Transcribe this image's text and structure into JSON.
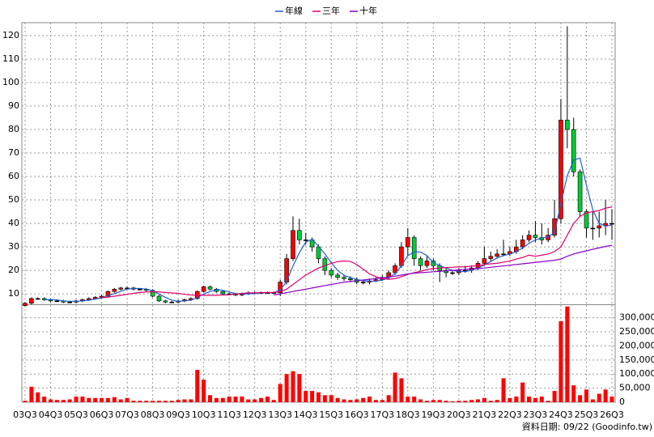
{
  "chart_data": [
    {
      "type": "candlestick",
      "up_color": "#ff0000",
      "down_color": "#00cc33",
      "open": [
        5,
        6,
        8,
        8,
        7.5,
        7,
        7,
        6.5,
        6.5,
        7,
        7.5,
        8,
        8.5,
        9,
        11,
        12,
        12.5,
        12.5,
        12,
        12,
        11.5,
        9,
        7,
        6.5,
        6.5,
        7,
        7.5,
        8,
        11,
        13,
        12,
        11,
        10,
        10,
        9.5,
        10,
        10.5,
        10.5,
        10.5,
        10.5,
        10.5,
        15,
        25,
        37,
        33,
        33,
        30,
        25,
        20,
        18,
        17,
        16.5,
        16,
        15,
        15,
        15.5,
        16,
        17,
        19,
        22,
        30,
        34,
        25,
        22,
        24,
        22,
        20,
        19,
        19,
        20,
        20,
        21,
        23,
        25,
        26,
        27,
        27,
        28,
        30,
        33,
        35,
        34,
        33,
        35,
        42,
        84,
        80,
        62,
        45,
        38,
        38,
        39,
        40
      ],
      "high": [
        6.5,
        8.5,
        8.5,
        8.5,
        8,
        7.5,
        7.5,
        7,
        7.5,
        8,
        8.5,
        9,
        9.5,
        11.5,
        12.5,
        13,
        13,
        13,
        12.5,
        12.5,
        12,
        9.5,
        7.5,
        7,
        7.5,
        8,
        8.5,
        11.5,
        13.5,
        13.5,
        12.5,
        11.5,
        10.5,
        10.5,
        10.5,
        11,
        11,
        11,
        11,
        11,
        16,
        27,
        43,
        42,
        36,
        34,
        31,
        26,
        21,
        19,
        18,
        17.5,
        17,
        16,
        16.5,
        17,
        18,
        20,
        23,
        32,
        38,
        35,
        26,
        26,
        25,
        23,
        21,
        20,
        21,
        22,
        22,
        24,
        30,
        28,
        29,
        33,
        30,
        33,
        35,
        37,
        41,
        40,
        38,
        50,
        93,
        124,
        85,
        63,
        46,
        45,
        45,
        50,
        46
      ],
      "low": [
        4.5,
        5.5,
        7.5,
        7,
        6.5,
        6.5,
        6,
        6,
        6,
        6.5,
        7,
        7.5,
        8,
        8.5,
        10.5,
        11.5,
        12,
        11.5,
        11.5,
        11,
        8.5,
        6.5,
        6,
        6,
        6,
        6.5,
        7,
        7.5,
        10.5,
        11.5,
        10.5,
        9.5,
        9.5,
        9,
        9,
        9.5,
        10,
        10,
        10,
        10,
        9,
        14,
        24,
        31,
        31,
        28,
        23,
        18,
        17,
        16,
        15.5,
        15,
        14,
        14,
        14,
        15,
        15.5,
        16,
        18,
        21,
        26,
        22,
        20,
        21,
        20,
        15,
        17,
        18,
        18,
        19,
        19,
        20,
        22,
        24,
        25,
        26,
        26,
        27,
        29,
        32,
        32,
        31,
        32,
        34,
        40,
        72,
        60,
        43,
        34,
        33,
        34,
        35,
        33
      ],
      "close": [
        6,
        8,
        8,
        7.5,
        7,
        7,
        6.5,
        6.5,
        7,
        7.5,
        8,
        8.5,
        9,
        11,
        12,
        12.5,
        12.5,
        12,
        12,
        11.5,
        9,
        7,
        6.5,
        6.5,
        7,
        7.5,
        8,
        11,
        13,
        12,
        11,
        10,
        10,
        9.5,
        10,
        10.5,
        10.5,
        10.5,
        10.5,
        10.5,
        15,
        25,
        37,
        33,
        33,
        30,
        25,
        20,
        18,
        17,
        16.5,
        16,
        15,
        15,
        15.5,
        16,
        17,
        19,
        22,
        30,
        34,
        25,
        22,
        24,
        22,
        20,
        19,
        19,
        20,
        20,
        21,
        23,
        25,
        26,
        27,
        27,
        28,
        30,
        33,
        35,
        34,
        33,
        35,
        42,
        84,
        80,
        62,
        45,
        38,
        38,
        39,
        40,
        40
      ],
      "series": [
        {
          "name": "年線",
          "color": "#1f5fd0",
          "values": [
            null,
            null,
            null,
            7.4,
            7.6,
            7.4,
            7,
            6.8,
            6.8,
            7,
            7.3,
            7.8,
            8.3,
            9.3,
            10.1,
            11.1,
            12,
            12.3,
            12.3,
            12,
            11.4,
            9.9,
            8.5,
            7.3,
            6.8,
            7,
            7.3,
            8.4,
            9.9,
            11,
            11.8,
            11.5,
            10.8,
            10.1,
            9.9,
            10,
            10.1,
            10.4,
            10.5,
            10.5,
            11.6,
            15.3,
            21.9,
            27.5,
            32,
            33.3,
            30.3,
            27,
            23.3,
            20,
            17.9,
            16.9,
            16.1,
            15.6,
            15.4,
            15.4,
            15.9,
            16.9,
            18.5,
            22,
            26.3,
            27.8,
            27.8,
            26.3,
            23.3,
            22,
            21,
            20,
            19.5,
            19.5,
            20,
            21,
            22.3,
            23.8,
            25.3,
            26.3,
            27,
            28,
            29.5,
            31.5,
            33,
            33.8,
            34.3,
            36,
            48.5,
            60.3,
            67,
            67.8,
            56.3,
            45.8,
            40,
            38.8,
            39.3
          ]
        },
        {
          "name": "三年",
          "color": "#e0006a",
          "values": [
            null,
            null,
            null,
            null,
            null,
            null,
            null,
            null,
            null,
            null,
            null,
            null,
            8.3,
            8.6,
            9,
            9.4,
            9.8,
            10.2,
            10.6,
            10.8,
            10.9,
            10.8,
            10.6,
            10.4,
            10.2,
            9.8,
            9.5,
            9.4,
            9.4,
            9.4,
            9.4,
            9.5,
            9.6,
            9.9,
            10.2,
            10.4,
            10.4,
            10.5,
            10.6,
            10.6,
            11,
            12,
            14,
            16,
            18,
            19.5,
            21,
            22,
            23,
            23.7,
            24,
            23.8,
            22.5,
            20.5,
            18.5,
            17.3,
            16.5,
            16.2,
            16.5,
            17.3,
            18.3,
            19,
            19.6,
            20.3,
            20.8,
            21,
            21.2,
            21.3,
            21.5,
            21.5,
            21.8,
            22,
            22.5,
            22.8,
            23,
            23.5,
            24,
            24.8,
            25.5,
            26.5,
            26,
            26.5,
            27,
            28,
            30,
            35,
            40,
            43,
            44.5,
            45,
            45.5,
            46.5,
            47
          ]
        },
        {
          "name": "十年",
          "color": "#8a00c8",
          "values": [
            null,
            null,
            null,
            null,
            null,
            null,
            null,
            null,
            null,
            null,
            null,
            null,
            null,
            null,
            null,
            null,
            null,
            null,
            null,
            null,
            null,
            null,
            null,
            null,
            null,
            null,
            null,
            null,
            null,
            null,
            null,
            null,
            null,
            null,
            null,
            null,
            null,
            null,
            null,
            9.5,
            10,
            10.5,
            11,
            11.5,
            12,
            12.5,
            13,
            13.5,
            14,
            14.5,
            15,
            15.3,
            15.6,
            15.9,
            16.2,
            16.5,
            16.8,
            17.1,
            17.5,
            18,
            18.5,
            18.8,
            19,
            19.2,
            19.4,
            19.6,
            19.8,
            20,
            20.2,
            20.4,
            20.6,
            20.8,
            21,
            21.3,
            21.6,
            21.9,
            22.2,
            22.5,
            22.8,
            23.1,
            23.4,
            23.7,
            24,
            24.3,
            24.8,
            26,
            27,
            27.7,
            28.3,
            29,
            29.6,
            30.2,
            30.7
          ]
        }
      ],
      "ylim": [
        5.9,
        125.5
      ],
      "yticks": [
        10,
        20,
        30,
        40,
        50,
        60,
        70,
        80,
        90,
        100,
        110,
        120
      ],
      "grid": true
    },
    {
      "type": "bar",
      "color": "#ff0000",
      "categories": [
        "03Q3",
        null,
        null,
        null,
        "04Q3",
        null,
        null,
        null,
        "05Q3",
        null,
        null,
        null,
        "06Q3",
        null,
        null,
        null,
        "07Q3",
        null,
        null,
        null,
        "08Q3",
        null,
        null,
        null,
        "09Q3",
        null,
        null,
        null,
        "10Q3",
        null,
        null,
        null,
        "11Q3",
        null,
        null,
        null,
        "12Q3",
        null,
        null,
        null,
        "13Q3",
        null,
        null,
        null,
        "14Q3",
        null,
        null,
        null,
        "15Q3",
        null,
        null,
        null,
        "16Q3",
        null,
        null,
        null,
        "17Q3",
        null,
        null,
        null,
        "18Q3",
        null,
        null,
        null,
        "19Q3",
        null,
        null,
        null,
        "20Q3",
        null,
        null,
        null,
        "21Q3",
        null,
        null,
        null,
        "22Q3",
        null,
        null,
        null,
        "23Q3",
        null,
        null,
        null,
        "24Q3",
        null,
        null,
        null,
        "25Q3",
        null,
        null,
        null,
        "26Q3"
      ],
      "values": [
        5000,
        55000,
        35000,
        20000,
        10000,
        8000,
        8000,
        10000,
        20000,
        20000,
        15000,
        15000,
        15000,
        15000,
        18000,
        10000,
        15000,
        5000,
        5000,
        5000,
        5000,
        5000,
        5000,
        5000,
        8000,
        10000,
        10000,
        115000,
        80000,
        25000,
        15000,
        15000,
        20000,
        20000,
        20000,
        10000,
        10000,
        15000,
        20000,
        8000,
        65000,
        100000,
        110000,
        100000,
        40000,
        40000,
        35000,
        25000,
        25000,
        15000,
        10000,
        8000,
        10000,
        15000,
        20000,
        8000,
        8000,
        25000,
        105000,
        85000,
        20000,
        20000,
        10000,
        5000,
        8000,
        8000,
        5000,
        3000,
        5000,
        5000,
        8000,
        10000,
        15000,
        5000,
        8000,
        85000,
        15000,
        20000,
        70000,
        20000,
        15000,
        20000,
        5000,
        40000,
        288000,
        340000,
        60000,
        25000,
        45000,
        10000,
        30000,
        45000,
        20000
      ],
      "ylim": [
        0,
        345000
      ],
      "yticks": [
        0,
        {
          "value": 50000,
          "label": "50,000"
        },
        {
          "value": 100000,
          "label": "100,000"
        },
        {
          "value": 150000,
          "label": "150,000"
        },
        {
          "value": 200000,
          "label": "200,000"
        },
        {
          "value": 250000,
          "label": "250,000"
        },
        {
          "value": 300000,
          "label": "300,000"
        }
      ],
      "grid": true
    }
  ],
  "footer": "資料日期: 09/22 (Goodinfo.tw)"
}
